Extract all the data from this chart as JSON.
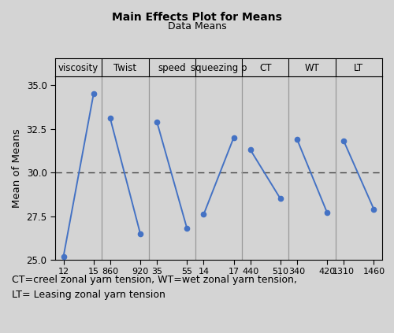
{
  "title": "Main Effects Plot for Means",
  "subtitle": "Data Means",
  "ylabel": "Mean of Means",
  "ylim": [
    25.0,
    35.5
  ],
  "yticks": [
    25.0,
    27.5,
    30.0,
    32.5,
    35.0
  ],
  "dashed_line_y": 30.0,
  "background_color": "#d4d4d4",
  "line_color": "#4472c4",
  "marker_color": "#4472c4",
  "sections": [
    {
      "label": "viscosity",
      "xtick_labels": [
        "12",
        "15"
      ],
      "values": [
        25.2,
        34.5
      ]
    },
    {
      "label": "Twist",
      "xtick_labels": [
        "860",
        "920"
      ],
      "values": [
        33.1,
        26.5
      ]
    },
    {
      "label": "speed",
      "xtick_labels": [
        "35",
        "55"
      ],
      "values": [
        32.9,
        26.8
      ]
    },
    {
      "label": "squeezing p",
      "xtick_labels": [
        "14",
        "17"
      ],
      "values": [
        27.6,
        32.0
      ]
    },
    {
      "label": "CT",
      "xtick_labels": [
        "440",
        "510"
      ],
      "values": [
        31.3,
        28.5
      ]
    },
    {
      "label": "WT",
      "xtick_labels": [
        "340",
        "420"
      ],
      "values": [
        31.9,
        27.7
      ]
    },
    {
      "label": "LT",
      "xtick_labels": [
        "1310",
        "1460"
      ],
      "values": [
        31.8,
        27.9
      ]
    }
  ],
  "caption_line1": "CT=creel zonal yarn tension, WT=wet zonal yarn tension,",
  "caption_line2": "LT= Leasing zonal yarn tension"
}
